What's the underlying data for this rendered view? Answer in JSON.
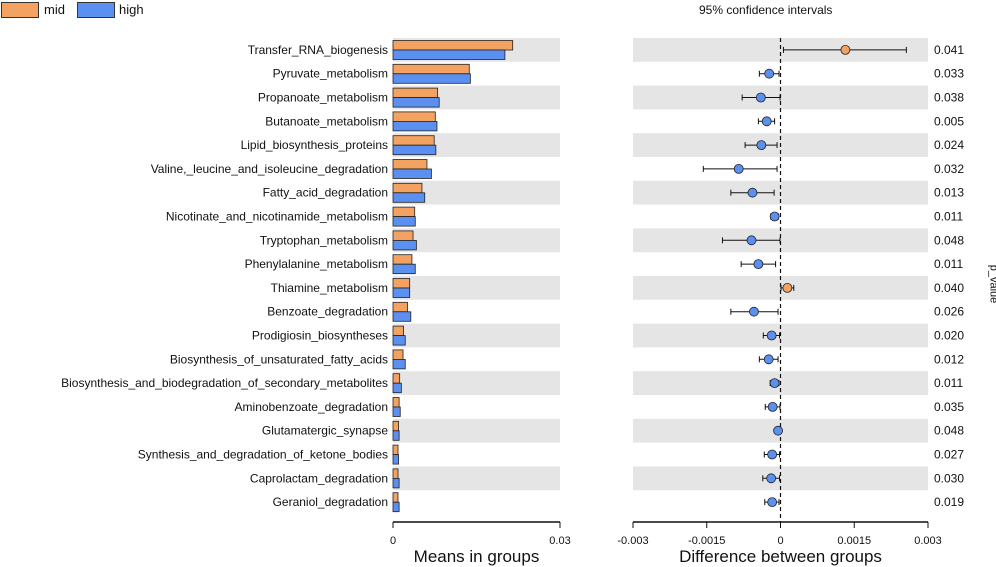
{
  "legend": [
    {
      "label": "mid",
      "color": "#f4a261"
    },
    {
      "label": "high",
      "color": "#5b8ff0"
    }
  ],
  "colors": {
    "mid": "#f4a261",
    "high": "#5b8ff0",
    "band": "#e5e5e5"
  },
  "ci_title": "95% confidence intervals",
  "pvalue_axis_label": "p_value",
  "chart_data": [
    {
      "type": "bar",
      "orientation": "horizontal",
      "title": "",
      "xlabel": "Means in groups",
      "xlim": [
        0,
        0.03
      ],
      "xticks": [
        {
          "value": 0,
          "label": "0"
        },
        {
          "value": 0.03,
          "label": "0.03"
        }
      ],
      "categories": [
        "Transfer_RNA_biogenesis",
        "Pyruvate_metabolism",
        "Propanoate_metabolism",
        "Butanoate_metabolism",
        "Lipid_biosynthesis_proteins",
        "Valine,_leucine_and_isoleucine_degradation",
        "Fatty_acid_degradation",
        "Nicotinate_and_nicotinamide_metabolism",
        "Tryptophan_metabolism",
        "Phenylalanine_metabolism",
        "Thiamine_metabolism",
        "Benzoate_degradation",
        "Prodigiosin_biosyntheses",
        "Biosynthesis_of_unsaturated_fatty_acids",
        "Biosynthesis_and_biodegradation_of_secondary_metabolites",
        "Aminobenzoate_degradation",
        "Glutamatergic_synapse",
        "Synthesis_and_degradation_of_ketone_bodies",
        "Caprolactam_degradation",
        "Geraniol_degradation"
      ],
      "series": [
        {
          "name": "mid",
          "values": [
            0.0215,
            0.0137,
            0.008,
            0.0076,
            0.0074,
            0.0061,
            0.0052,
            0.0039,
            0.0036,
            0.0034,
            0.003,
            0.0026,
            0.0019,
            0.0018,
            0.0012,
            0.0011,
            0.001,
            0.0009,
            0.0009,
            0.0009
          ]
        },
        {
          "name": "high",
          "values": [
            0.0201,
            0.0139,
            0.0083,
            0.0079,
            0.0077,
            0.0069,
            0.0057,
            0.004,
            0.0042,
            0.004,
            0.003,
            0.0032,
            0.0022,
            0.0022,
            0.0015,
            0.0013,
            0.0011,
            0.001,
            0.0011,
            0.0011
          ]
        }
      ]
    },
    {
      "type": "errorbar",
      "title": "95% confidence intervals",
      "xlabel": "Difference between groups",
      "xlim": [
        -0.003,
        0.003
      ],
      "xticks": [
        {
          "value": -0.003,
          "label": "-0.003"
        },
        {
          "value": -0.0015,
          "label": "-0.0015"
        },
        {
          "value": 0,
          "label": "0"
        },
        {
          "value": 0.0015,
          "label": "0.0015"
        },
        {
          "value": 0.003,
          "label": "0.003"
        }
      ],
      "points": [
        {
          "category": "Transfer_RNA_biogenesis",
          "diff": 0.00132,
          "ci": [
            6e-05,
            0.00256
          ],
          "group": "mid",
          "p_value": "0.041"
        },
        {
          "category": "Pyruvate_metabolism",
          "diff": -0.00023,
          "ci": [
            -0.00043,
            -3e-05
          ],
          "group": "high",
          "p_value": "0.033"
        },
        {
          "category": "Propanoate_metabolism",
          "diff": -0.0004,
          "ci": [
            -0.00078,
            -1e-05
          ],
          "group": "high",
          "p_value": "0.038"
        },
        {
          "category": "Butanoate_metabolism",
          "diff": -0.00028,
          "ci": [
            -0.00045,
            -0.00012
          ],
          "group": "high",
          "p_value": "0.005"
        },
        {
          "category": "Lipid_biosynthesis_proteins",
          "diff": -0.00039,
          "ci": [
            -0.00072,
            -7e-05
          ],
          "group": "high",
          "p_value": "0.024"
        },
        {
          "category": "Valine,_leucine_and_isoleucine_degradation",
          "diff": -0.00085,
          "ci": [
            -0.00157,
            -7e-05
          ],
          "group": "high",
          "p_value": "0.032"
        },
        {
          "category": "Fatty_acid_degradation",
          "diff": -0.00057,
          "ci": [
            -0.00101,
            -0.00013
          ],
          "group": "high",
          "p_value": "0.013"
        },
        {
          "category": "Nicotinate_and_nicotinamide_metabolism",
          "diff": -0.00012,
          "ci": [
            -0.0002,
            -4e-05
          ],
          "group": "high",
          "p_value": "0.011"
        },
        {
          "category": "Tryptophan_metabolism",
          "diff": -0.00059,
          "ci": [
            -0.00118,
            -1e-05
          ],
          "group": "high",
          "p_value": "0.048"
        },
        {
          "category": "Phenylalanine_metabolism",
          "diff": -0.00045,
          "ci": [
            -0.0008,
            -0.0001
          ],
          "group": "high",
          "p_value": "0.011"
        },
        {
          "category": "Thiamine_metabolism",
          "diff": 0.00014,
          "ci": [
            1e-05,
            0.00027
          ],
          "group": "mid",
          "p_value": "0.040"
        },
        {
          "category": "Benzoate_degradation",
          "diff": -0.00054,
          "ci": [
            -0.00101,
            -5e-05
          ],
          "group": "high",
          "p_value": "0.026"
        },
        {
          "category": "Prodigiosin_biosyntheses",
          "diff": -0.00018,
          "ci": [
            -0.00035,
            -2e-05
          ],
          "group": "high",
          "p_value": "0.020"
        },
        {
          "category": "Biosynthesis_of_unsaturated_fatty_acids",
          "diff": -0.00024,
          "ci": [
            -0.00043,
            -5e-05
          ],
          "group": "high",
          "p_value": "0.012"
        },
        {
          "category": "Biosynthesis_and_biodegradation_of_secondary_metabolites",
          "diff": -0.00012,
          "ci": [
            -0.00021,
            -3e-05
          ],
          "group": "high",
          "p_value": "0.011"
        },
        {
          "category": "Aminobenzoate_degradation",
          "diff": -0.00016,
          "ci": [
            -0.00031,
            -1e-05
          ],
          "group": "high",
          "p_value": "0.035"
        },
        {
          "category": "Glutamatergic_synapse",
          "diff": -5e-05,
          "ci": [
            -0.0001,
            -1e-05
          ],
          "group": "high",
          "p_value": "0.048"
        },
        {
          "category": "Synthesis_and_degradation_of_ketone_bodies",
          "diff": -0.00017,
          "ci": [
            -0.00033,
            -2e-05
          ],
          "group": "high",
          "p_value": "0.027"
        },
        {
          "category": "Caprolactam_degradation",
          "diff": -0.00019,
          "ci": [
            -0.00036,
            -2e-05
          ],
          "group": "high",
          "p_value": "0.030"
        },
        {
          "category": "Geraniol_degradation",
          "diff": -0.00017,
          "ci": [
            -0.00032,
            -3e-05
          ],
          "group": "high",
          "p_value": "0.019"
        }
      ]
    }
  ]
}
